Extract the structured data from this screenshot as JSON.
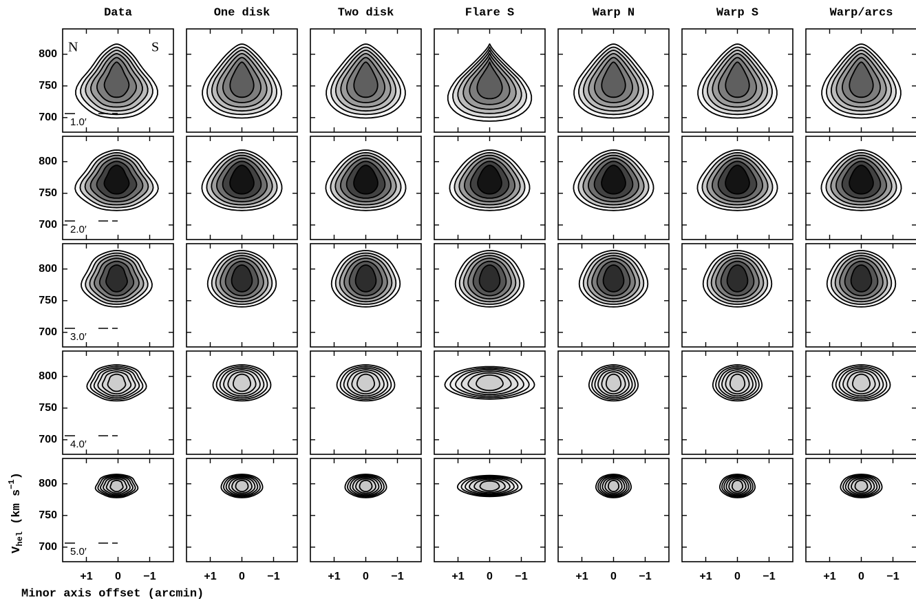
{
  "chart_data": {
    "type": "contour-grid",
    "columns": [
      "Data",
      "One disk",
      "Two disk",
      "Flare S",
      "Warp N",
      "Warp S",
      "Warp/arcs"
    ],
    "rows": [
      "1.0′",
      "2.0′",
      "3.0′",
      "4.0′",
      "5.0′"
    ],
    "panel_labels": [
      "N",
      "S"
    ],
    "xlabel": "Minor axis offset (arcmin)",
    "ylabel": [
      "V",
      "hel",
      " (km s",
      "−1",
      ")"
    ],
    "xlim": [
      1.75,
      -1.75
    ],
    "xticks": [
      {
        "value": 1,
        "label": "+1"
      },
      0,
      {
        "value": -1,
        "label": "−1"
      }
    ],
    "ylim": [
      677,
      840
    ],
    "yticks": [
      700,
      750,
      800
    ],
    "grid": false
  }
}
